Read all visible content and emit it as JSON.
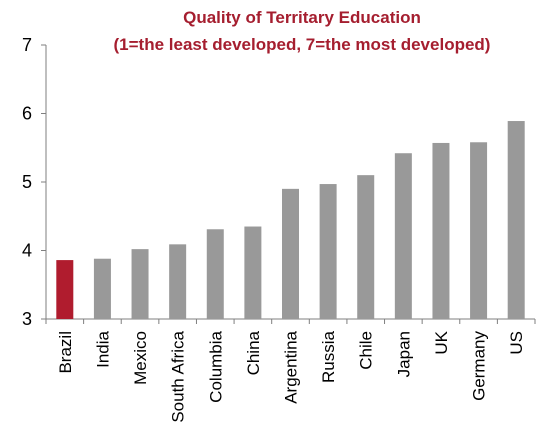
{
  "chart_data": {
    "type": "bar",
    "title": "Quality of Territary Education",
    "subtitle": "(1=the least developed, 7=the most developed)",
    "xlabel": "",
    "ylabel": "",
    "ylim": [
      3,
      7
    ],
    "yticks": [
      3,
      4,
      5,
      6,
      7
    ],
    "grid": false,
    "categories": [
      "Brazil",
      "India",
      "Mexico",
      "South Africa",
      "Columbia",
      "China",
      "Argentina",
      "Russia",
      "Chile",
      "Japan",
      "UK",
      "Germany",
      "US"
    ],
    "values": [
      3.86,
      3.88,
      4.02,
      4.09,
      4.31,
      4.35,
      4.9,
      4.97,
      5.1,
      5.42,
      5.57,
      5.58,
      5.89
    ],
    "highlight_category": "Brazil",
    "colors": {
      "bar": "#999999",
      "highlight": "#b01c2e",
      "title": "#a51e2f",
      "axis": "#7f7f7f",
      "text": "#000000"
    }
  }
}
